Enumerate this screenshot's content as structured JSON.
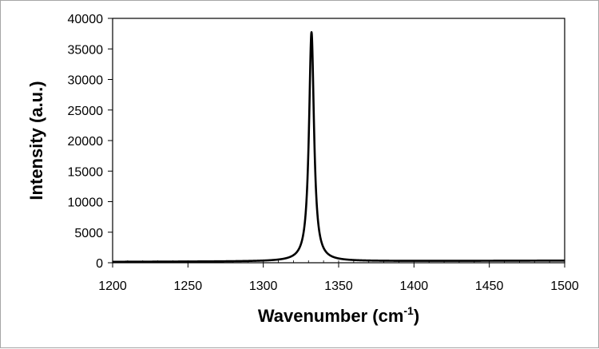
{
  "chart_data": {
    "type": "line",
    "xlabel": "Wavenumber (cm",
    "xlabel_sup": "-1",
    "xlabel_end": ")",
    "ylabel": "Intensity (a.u.)",
    "xlim": [
      1200,
      1500
    ],
    "ylim": [
      0,
      40000
    ],
    "x_ticks": [
      1200,
      1250,
      1300,
      1350,
      1400,
      1450,
      1500
    ],
    "y_ticks": [
      0,
      5000,
      10000,
      15000,
      20000,
      25000,
      30000,
      35000,
      40000
    ],
    "grid": false,
    "legend": "none",
    "line_color": "#000000",
    "series": [
      {
        "peak_center": 1332,
        "peak_height": 37500,
        "peak_hwhm": 2.0,
        "baseline_start": 150,
        "baseline_end": 350,
        "x": [
          1200,
          1250,
          1300,
          1320,
          1325,
          1328,
          1330,
          1331,
          1332,
          1333,
          1334,
          1336,
          1339,
          1345,
          1350,
          1400,
          1450,
          1500
        ],
        "values": [
          150,
          200,
          350,
          1200,
          2400,
          7500,
          19000,
          30200,
          37500,
          30200,
          19000,
          7500,
          2400,
          900,
          550,
          350,
          330,
          350
        ]
      }
    ]
  }
}
